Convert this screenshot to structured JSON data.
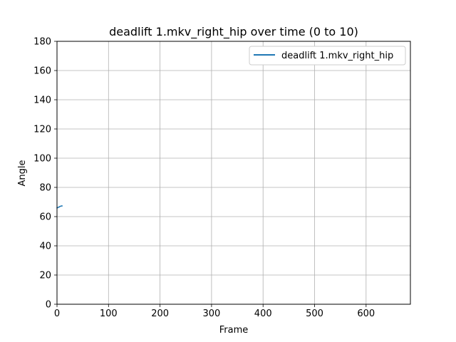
{
  "chart_data": {
    "type": "line",
    "title": "deadlift 1.mkv_right_hip over time (0 to 10)",
    "xlabel": "Frame",
    "ylabel": "Angle",
    "xlim": [
      0,
      686
    ],
    "ylim": [
      0,
      180
    ],
    "xticks": [
      0,
      100,
      200,
      300,
      400,
      500,
      600
    ],
    "yticks": [
      0,
      20,
      40,
      60,
      80,
      100,
      120,
      140,
      160,
      180
    ],
    "grid": true,
    "legend_position": "top-right",
    "series": [
      {
        "name": "deadlift 1.mkv_right_hip",
        "color": "#1f77b4",
        "x": [
          0,
          1,
          2,
          3,
          4,
          5,
          6,
          7,
          8,
          9,
          10
        ],
        "y": [
          66.0,
          66.0,
          66.3,
          66.5,
          66.5,
          66.8,
          67.0,
          67.1,
          67.2,
          67.3,
          67.3
        ]
      }
    ]
  }
}
